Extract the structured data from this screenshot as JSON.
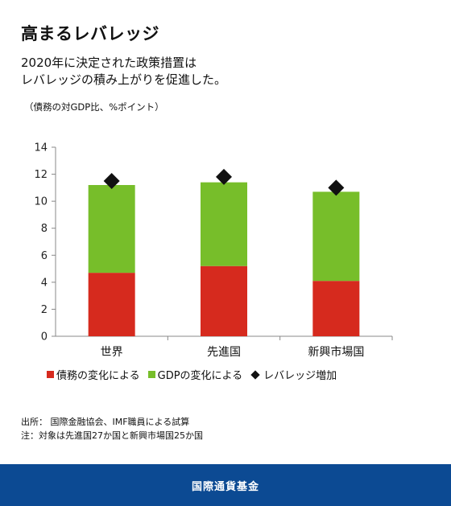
{
  "title": "高まるレバレッジ",
  "subtitle": [
    "2020年に決定された政策措置は",
    "レバレッジの積み上がりを促進した。"
  ],
  "unit_note": "（債務の対GDP比、%ポイント）",
  "chart_data": {
    "type": "bar",
    "stacked": true,
    "categories": [
      "世界",
      "先進国",
      "新興市場国"
    ],
    "series": [
      {
        "name": "債務の変化による",
        "color": "#d62a1e",
        "values": [
          4.7,
          5.2,
          4.1
        ]
      },
      {
        "name": "GDPの変化による",
        "color": "#77be2a",
        "values": [
          6.5,
          6.2,
          6.6
        ]
      }
    ],
    "markers": {
      "name": "レバレッジ増加",
      "color": "#111111",
      "values": [
        11.5,
        11.8,
        11.0
      ]
    },
    "y_ticks": [
      "0",
      "2",
      "4",
      "6",
      "8",
      "10",
      "12",
      "14"
    ],
    "ylim": [
      0,
      14
    ],
    "grid": false,
    "legend_position": "bottom"
  },
  "notes": [
    "出所： 国際金融協会、IMF職員による試算",
    "注：対象は先進国27か国と新興市場国25か国"
  ],
  "footer": "国際通貨基金"
}
